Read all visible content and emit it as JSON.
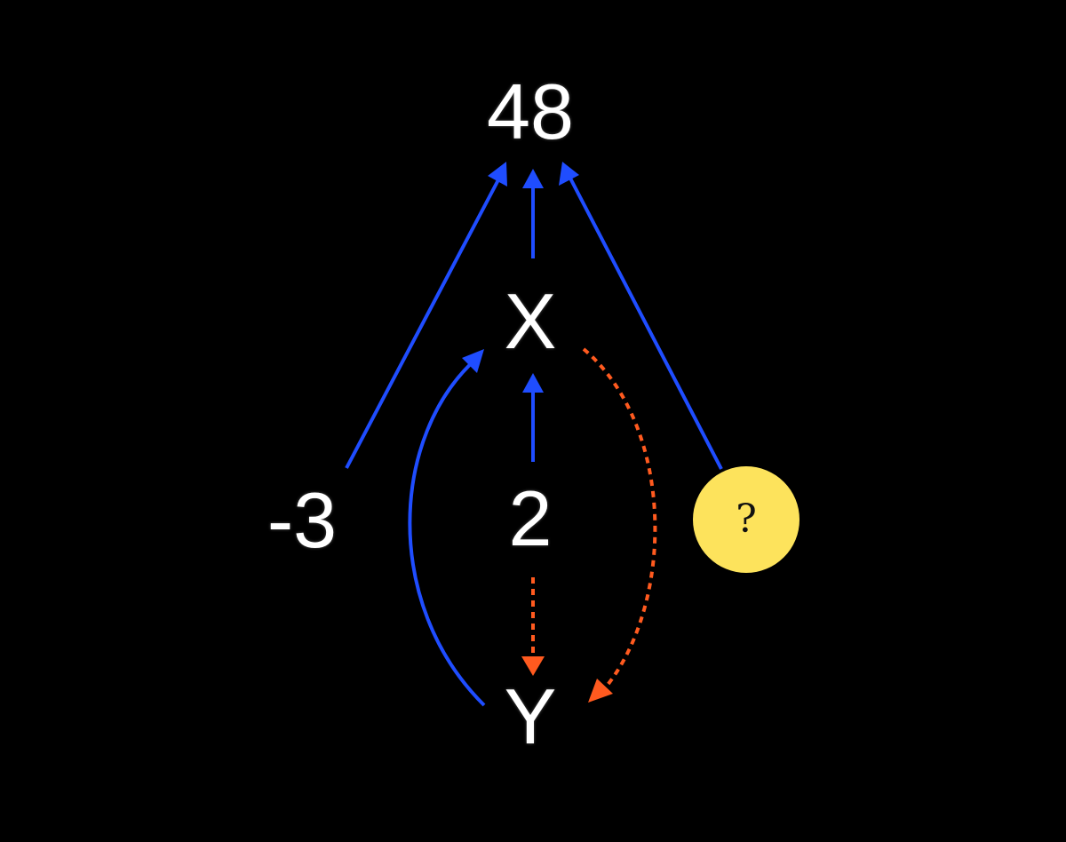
{
  "nodes": {
    "top": "48",
    "x": "X",
    "two": "2",
    "minus_three": "-3",
    "y": "Y",
    "unknown": "?"
  },
  "colors": {
    "background": "#000000",
    "node_text": "#ffffff",
    "blue_edge": "#1f4dff",
    "orange_edge": "#ff5a1f",
    "unknown_fill": "#fde35c"
  },
  "edges": [
    {
      "from": "-3",
      "to": "48",
      "style": "solid",
      "color": "blue"
    },
    {
      "from": "X",
      "to": "48",
      "style": "solid",
      "color": "blue"
    },
    {
      "from": "?",
      "to": "48",
      "style": "solid",
      "color": "blue"
    },
    {
      "from": "2",
      "to": "X",
      "style": "solid",
      "color": "blue"
    },
    {
      "from": "Y",
      "to": "X",
      "style": "solid",
      "color": "blue"
    },
    {
      "from": "2",
      "to": "Y",
      "style": "dashed",
      "color": "orange"
    },
    {
      "from": "X",
      "to": "Y",
      "style": "dashed",
      "color": "orange"
    }
  ]
}
